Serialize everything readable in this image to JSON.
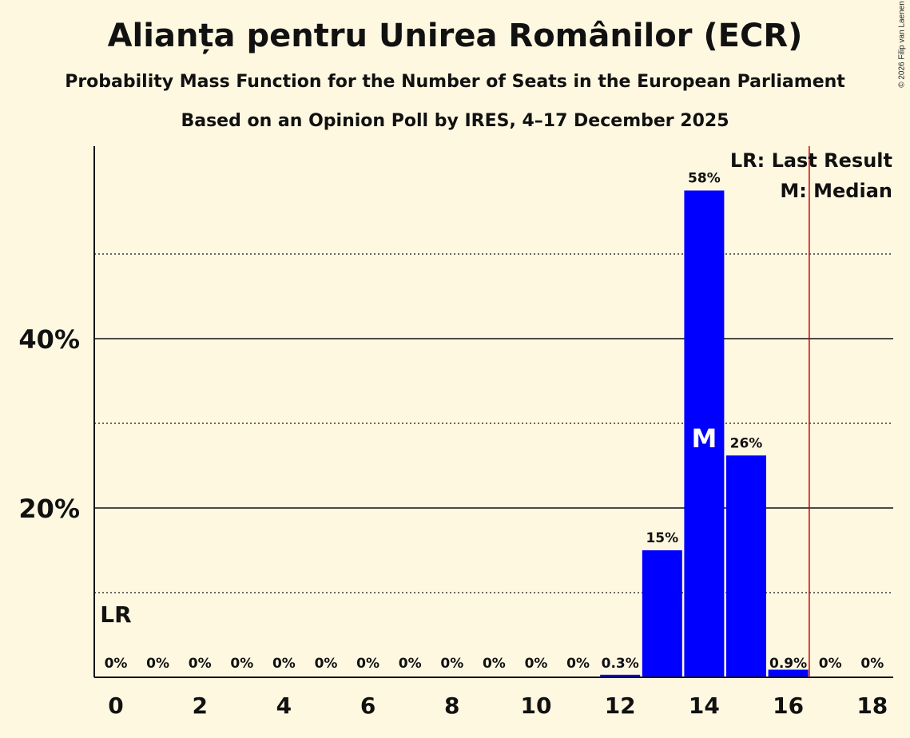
{
  "chart_data": {
    "type": "bar",
    "title": "Alianța pentru Unirea Românilor (ECR)",
    "subtitle": "Probability Mass Function for the Number of Seats in the European Parliament",
    "subtitle2": "Based on an Opinion Poll by IRES, 4–17 December 2025",
    "copyright": "© 2026 Filip van Laenen",
    "categories": [
      0,
      1,
      2,
      3,
      4,
      5,
      6,
      7,
      8,
      9,
      10,
      11,
      12,
      13,
      14,
      15,
      16,
      17,
      18
    ],
    "values": [
      0,
      0,
      0,
      0,
      0,
      0,
      0,
      0,
      0,
      0,
      0,
      0,
      0.3,
      15,
      57.5,
      26.2,
      0.9,
      0,
      0
    ],
    "data_labels": [
      "0%",
      "0%",
      "0%",
      "0%",
      "0%",
      "0%",
      "0%",
      "0%",
      "0%",
      "0%",
      "0%",
      "0%",
      "0.3%",
      "15%",
      "58%",
      "26%",
      "0.9%",
      "0%",
      "0%"
    ],
    "x_tick_labels": [
      "0",
      "2",
      "4",
      "6",
      "8",
      "10",
      "12",
      "14",
      "16",
      "18"
    ],
    "y_tick_labels": [
      {
        "value": 20,
        "label": "20%"
      },
      {
        "value": 40,
        "label": "40%"
      }
    ],
    "solid_gridlines": [
      20,
      40
    ],
    "dotted_gridlines": [
      10,
      30,
      50
    ],
    "ylim": [
      0,
      62
    ],
    "xlim": [
      -0.5,
      18.5
    ],
    "bar_color": "#0000ff",
    "last_result_line_x": 16.5,
    "line_color": "#cc0000",
    "last_result_label": "LR",
    "last_result_label_x": 0,
    "median_label": "M",
    "median_x": 14,
    "legend": [
      "LR: Last Result",
      "M: Median"
    ],
    "legend_position": "top-right"
  }
}
